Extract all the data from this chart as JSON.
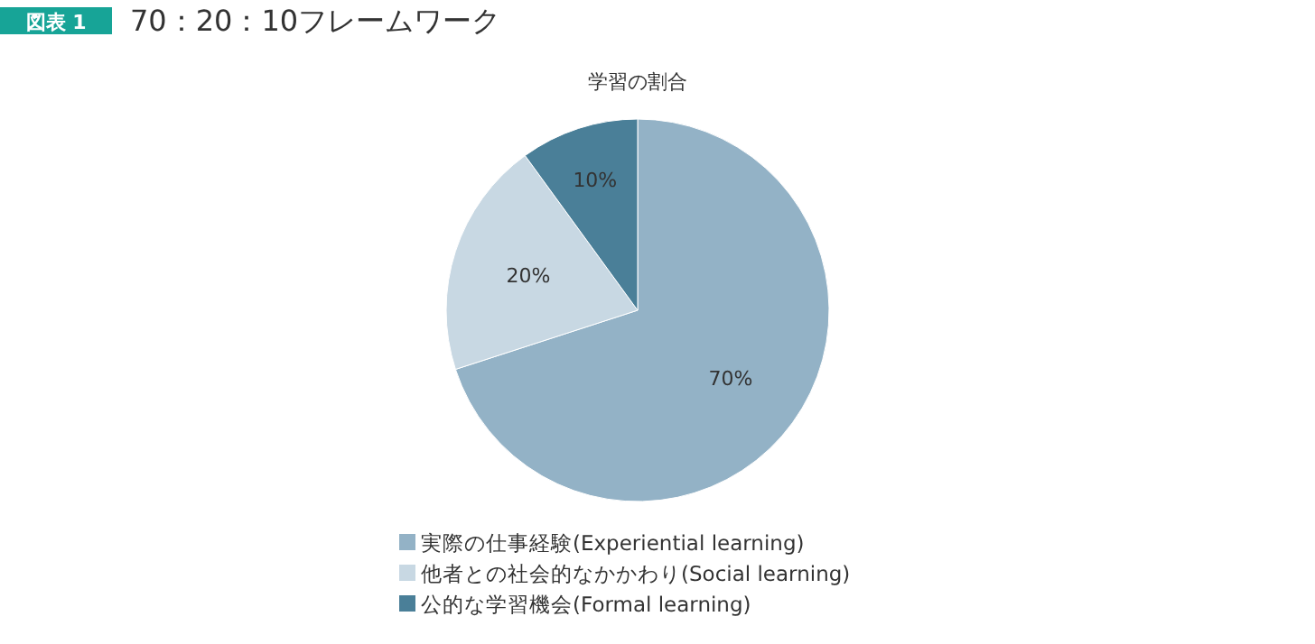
{
  "chart_data": {
    "type": "pie",
    "title": "70：20：10フレームワーク",
    "subtitle": "学習の割合",
    "annotations": [
      "図表 1"
    ],
    "categories": [
      "実際の仕事経験(Experiential learning)",
      "他者との社会的なかかわり(Social learning)",
      "公的な学習機会(Formal learning)"
    ],
    "values": [
      70,
      20,
      10
    ],
    "colors": [
      "#93b2c6",
      "#c8d8e3",
      "#4a7f98"
    ],
    "value_labels": [
      "70%",
      "20%",
      "10%"
    ],
    "legend": "bottom"
  }
}
